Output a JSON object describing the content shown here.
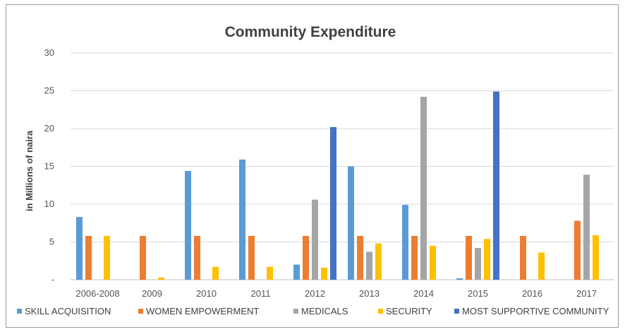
{
  "chart_data": {
    "type": "bar",
    "title": "Community Expenditure",
    "xlabel": "",
    "ylabel": "in Millions of naira",
    "ylim": [
      0,
      30
    ],
    "yticks": [
      "-",
      "5",
      "10",
      "15",
      "20",
      "25",
      "30"
    ],
    "grid": true,
    "legend_position": "bottom",
    "categories": [
      "2006-2008",
      "2009",
      "2010",
      "2011",
      "2012",
      "2013",
      "2014",
      "2015",
      "2016",
      "2017"
    ],
    "series": [
      {
        "name": "SKILL ACQUISITION",
        "color": "#5b9bd5",
        "values": [
          8.3,
          0,
          14.4,
          15.9,
          2.0,
          15.0,
          9.9,
          0.2,
          0,
          0
        ]
      },
      {
        "name": "WOMEN EMPOWERMENT",
        "color": "#ed7d31",
        "values": [
          5.8,
          5.8,
          5.8,
          5.8,
          5.8,
          5.8,
          5.8,
          5.8,
          5.8,
          7.8
        ]
      },
      {
        "name": "MEDICALS",
        "color": "#a5a5a5",
        "values": [
          0,
          0,
          0,
          0,
          10.6,
          3.7,
          24.2,
          4.2,
          0,
          13.9
        ]
      },
      {
        "name": "SECURITY",
        "color": "#ffc000",
        "values": [
          5.8,
          0.3,
          1.7,
          1.7,
          1.6,
          4.8,
          4.5,
          5.4,
          3.6,
          5.9
        ]
      },
      {
        "name": "MOST SUPPORTIVE COMMUNITY",
        "color": "#4472c4",
        "values": [
          0,
          0,
          0,
          0,
          20.2,
          0,
          0,
          24.9,
          0,
          0
        ]
      }
    ]
  }
}
